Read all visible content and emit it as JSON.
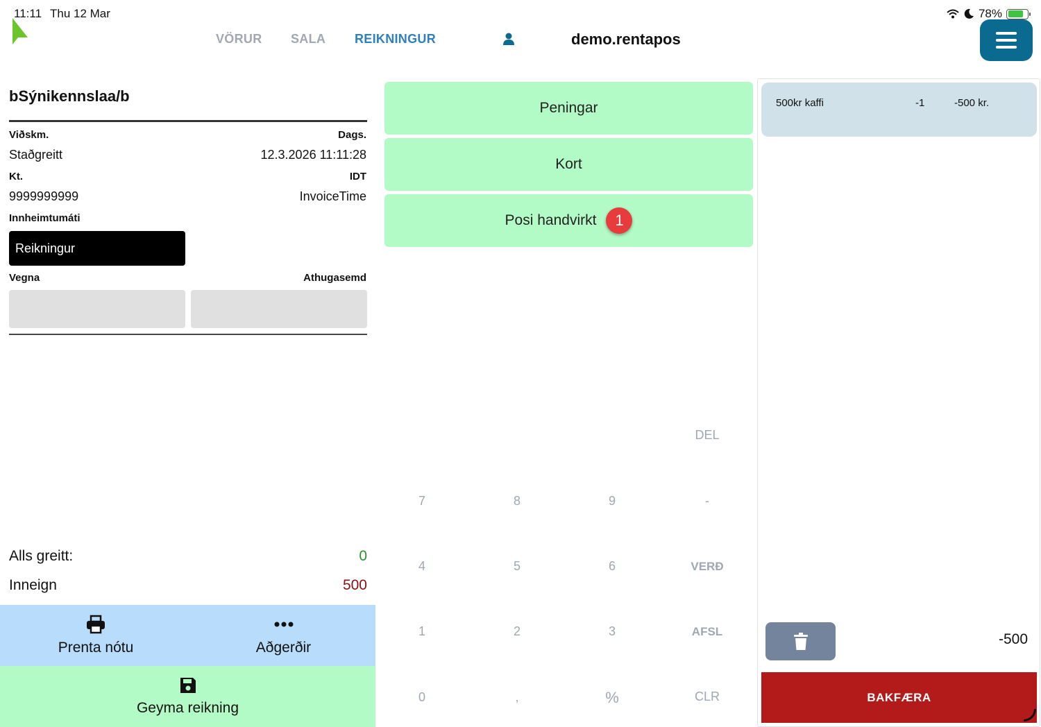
{
  "status_bar": {
    "time": "11:11",
    "date": "Thu 12 Mar",
    "battery": "78%",
    "battery_level": 0.78
  },
  "nav": {
    "tabs": [
      {
        "label": "VÖRUR",
        "active": false
      },
      {
        "label": "SALA",
        "active": false
      },
      {
        "label": "REIKNINGUR",
        "active": true
      }
    ]
  },
  "header": {
    "site_name": "demo.rentapos"
  },
  "invoice": {
    "customer_title": "bSýnikennslaa/b",
    "customer_label": "Viðskm.",
    "customer_value": "Staðgreitt",
    "date_label": "Dags.",
    "date_value": "12.3.2026 11:11:28",
    "kt_label": "Kt.",
    "kt_value": "9999999999",
    "idt_label": "IDT",
    "idt_value": "InvoiceTime",
    "collection_label": "Innheimtumáti",
    "collection_value": "Reikningur",
    "regarding_label": "Vegna",
    "regarding_value": "",
    "note_label": "Athugasemd",
    "note_value": ""
  },
  "totals": {
    "paid_label": "Alls greitt:",
    "paid_value": "0",
    "balance_label": "Inneign",
    "balance_value": "500"
  },
  "actions": {
    "print_label": "Prenta nótu",
    "more_label": "Aðgerðir",
    "save_label": "Geyma reikning"
  },
  "payment_methods": [
    {
      "label": "Peningar"
    },
    {
      "label": "Kort"
    },
    {
      "label": "Posi handvirkt",
      "badge": "1"
    }
  ],
  "keypad": {
    "del": "DEL",
    "rows": [
      [
        "7",
        "8",
        "9",
        "-"
      ],
      [
        "4",
        "5",
        "6",
        "VERÐ"
      ],
      [
        "1",
        "2",
        "3",
        "AFSL"
      ],
      [
        "0",
        ",",
        "%",
        "CLR"
      ]
    ]
  },
  "cart": {
    "items": [
      {
        "name": "500kr kaffi",
        "qty": "-1",
        "price": "-500 kr."
      }
    ],
    "total": "-500",
    "refund_label": "BAKFÆRA"
  },
  "colors": {
    "accent": "#2c7fc1",
    "menu_button": "#0b6a8f",
    "pay_button": "#b3fbc6",
    "action_row": "#b8dcfb",
    "cart_item": "#d0e1e9",
    "refund": "#b31b1b",
    "paid_value": "#2f8f2f",
    "balance_value": "#8b1010",
    "badge": "#e83b3b"
  }
}
